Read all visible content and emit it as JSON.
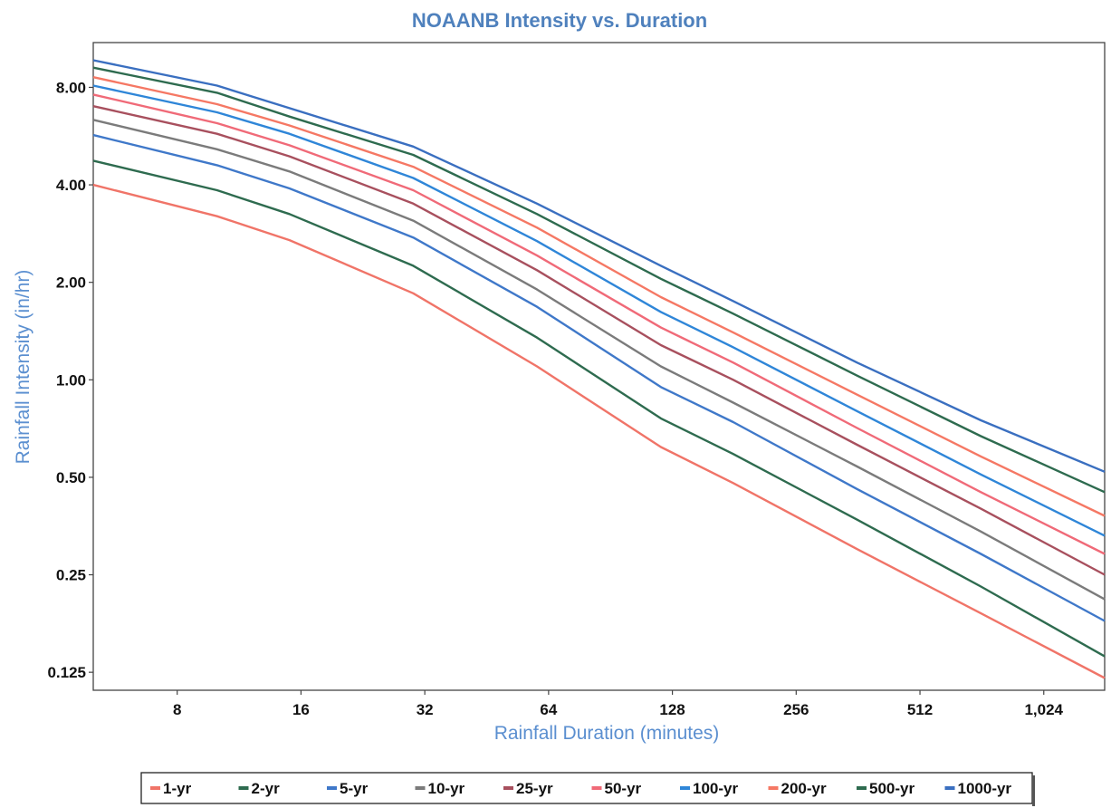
{
  "chart_data": {
    "type": "line",
    "title": "NOAANB Intensity vs. Duration",
    "xlabel": "Rainfall Duration  (minutes)",
    "ylabel": "Rainfall Intensity  (in/hr)",
    "x_scale": "log2",
    "y_scale": "log2",
    "xlim": [
      5,
      1440
    ],
    "ylim": [
      0.11,
      11
    ],
    "x_ticks": [
      8,
      16,
      32,
      64,
      128,
      256,
      512,
      1024
    ],
    "x_tick_labels": [
      "8",
      "16",
      "32",
      "64",
      "128",
      "256",
      "512",
      "1,024"
    ],
    "y_ticks": [
      0.125,
      0.25,
      0.5,
      1,
      2,
      4,
      8
    ],
    "y_tick_labels": [
      "0.125",
      "0.25",
      "0.50",
      "1.00",
      "2.00",
      "4.00",
      "8.00"
    ],
    "grid": false,
    "legend_position": "bottom",
    "x": [
      5,
      10,
      15,
      30,
      60,
      120,
      180,
      360,
      720,
      1440
    ],
    "series": [
      {
        "name": "1-yr",
        "color": "#f07468",
        "values": [
          4.0,
          3.2,
          2.7,
          1.85,
          1.1,
          0.62,
          0.48,
          0.3,
          0.19,
          0.12
        ]
      },
      {
        "name": "2-yr",
        "color": "#2e6b4f",
        "values": [
          4.75,
          3.85,
          3.25,
          2.25,
          1.35,
          0.76,
          0.59,
          0.37,
          0.23,
          0.14
        ]
      },
      {
        "name": "5-yr",
        "color": "#3f78c9",
        "values": [
          5.7,
          4.6,
          3.9,
          2.75,
          1.68,
          0.95,
          0.74,
          0.46,
          0.29,
          0.18
        ]
      },
      {
        "name": "10-yr",
        "color": "#7b7b7b",
        "values": [
          6.35,
          5.15,
          4.4,
          3.1,
          1.9,
          1.1,
          0.85,
          0.54,
          0.34,
          0.21
        ]
      },
      {
        "name": "25-yr",
        "color": "#a8505e",
        "values": [
          7.0,
          5.75,
          4.9,
          3.5,
          2.18,
          1.28,
          1.0,
          0.63,
          0.4,
          0.25
        ]
      },
      {
        "name": "50-yr",
        "color": "#f06a78",
        "values": [
          7.6,
          6.2,
          5.3,
          3.85,
          2.42,
          1.45,
          1.13,
          0.71,
          0.45,
          0.29
        ]
      },
      {
        "name": "100-yr",
        "color": "#2f86d8",
        "values": [
          8.1,
          6.7,
          5.75,
          4.2,
          2.68,
          1.62,
          1.26,
          0.8,
          0.51,
          0.33
        ]
      },
      {
        "name": "200-yr",
        "color": "#f57864",
        "values": [
          8.6,
          7.1,
          6.1,
          4.55,
          2.95,
          1.8,
          1.4,
          0.9,
          0.58,
          0.38
        ]
      },
      {
        "name": "500-yr",
        "color": "#2e6b4f",
        "values": [
          9.2,
          7.7,
          6.5,
          4.95,
          3.25,
          2.05,
          1.6,
          1.03,
          0.67,
          0.45
        ]
      },
      {
        "name": "1000-yr",
        "color": "#3a6fc0",
        "values": [
          9.7,
          8.1,
          6.9,
          5.25,
          3.5,
          2.25,
          1.75,
          1.13,
          0.75,
          0.52
        ]
      }
    ]
  }
}
